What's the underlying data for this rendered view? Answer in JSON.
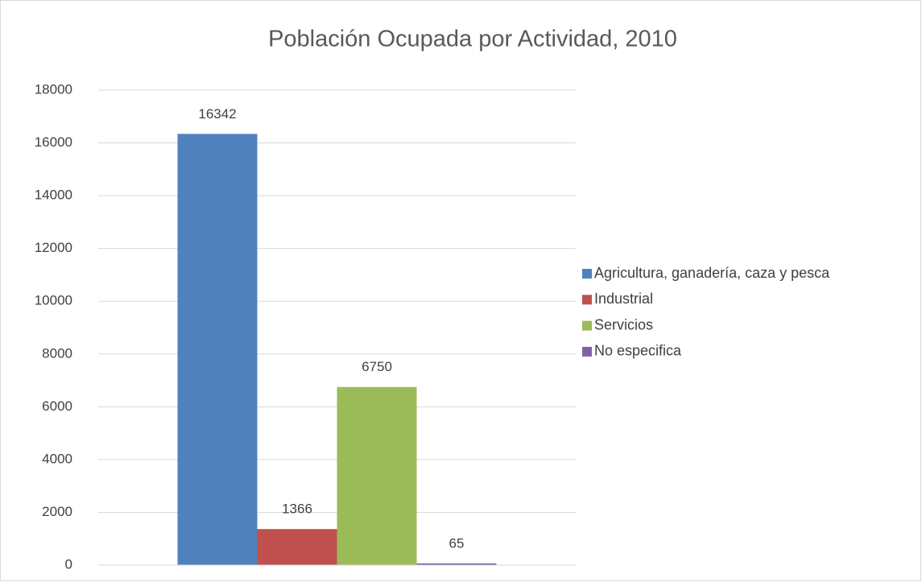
{
  "chart_data": {
    "type": "bar",
    "title": "Población Ocupada por Actividad, 2010",
    "categories": [
      null
    ],
    "series": [
      {
        "name": "Agricultura, ganadería, caza y pesca",
        "color": "#4f81bd",
        "values": [
          16342
        ]
      },
      {
        "name": "Industrial",
        "color": "#c0504d",
        "values": [
          1366
        ]
      },
      {
        "name": "Servicios",
        "color": "#9bbb59",
        "values": [
          6750
        ]
      },
      {
        "name": "No especifica",
        "color": "#8064a2",
        "values": [
          65
        ]
      }
    ],
    "ylim": [
      0,
      18000
    ],
    "yticks": [
      0,
      2000,
      4000,
      6000,
      8000,
      10000,
      12000,
      14000,
      16000,
      18000
    ],
    "grid": true,
    "legend": "right"
  }
}
